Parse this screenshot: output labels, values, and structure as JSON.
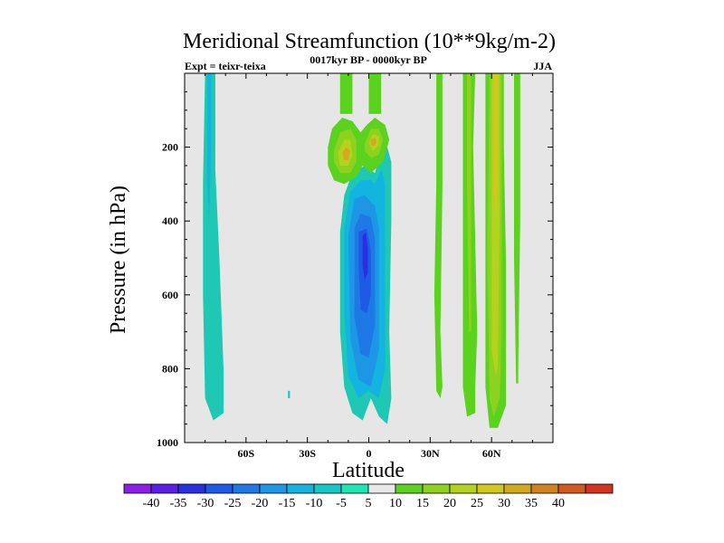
{
  "chart_data": {
    "type": "contour",
    "title": "Meridional Streamfunction (10**9kg/m-2)",
    "subtitle": "0017kyr BP - 0000kyr BP",
    "left_label": "Expt = teixr-teixa",
    "right_label": "JJA",
    "xlabel": "Latitude",
    "ylabel": "Pressure (in hPa)",
    "xlim": [
      -90,
      90
    ],
    "ylim": [
      1000,
      0
    ],
    "x_ticks": [
      {
        "value": -60,
        "label": "60S"
      },
      {
        "value": -30,
        "label": "30S"
      },
      {
        "value": 0,
        "label": "0"
      },
      {
        "value": 30,
        "label": "30N"
      },
      {
        "value": 60,
        "label": "60N"
      }
    ],
    "y_ticks": [
      {
        "value": 200,
        "label": "200"
      },
      {
        "value": 400,
        "label": "400"
      },
      {
        "value": 600,
        "label": "600"
      },
      {
        "value": 800,
        "label": "800"
      },
      {
        "value": 1000,
        "label": "1000"
      }
    ],
    "background_color": "#e6e6e6",
    "colorbar": {
      "levels": [
        -40,
        -35,
        -30,
        -25,
        -20,
        -15,
        -10,
        -5,
        5,
        10,
        15,
        20,
        25,
        30,
        35,
        40
      ],
      "level_labels": [
        "-40",
        "-35",
        "-30",
        "-25",
        "-20",
        "-15",
        "-10",
        "-5",
        "5",
        "10",
        "15",
        "20",
        "25",
        "30",
        "35",
        "40"
      ],
      "colors": [
        "#8c1ee6",
        "#5a1ee6",
        "#2a30e0",
        "#1e5ae6",
        "#1e78e6",
        "#1e96e6",
        "#14b4e0",
        "#14c8c8",
        "#1ee6b4",
        "#e8e8e8",
        "#5ad21e",
        "#8cd21e",
        "#b4d21e",
        "#d2c81e",
        "#d2aa1e",
        "#d2821e",
        "#d25a1e",
        "#d2321e"
      ]
    },
    "features": [
      {
        "name": "southern-negative-band",
        "level": -10,
        "color": "#1ec8b4",
        "outline": [
          [
            -80,
            0
          ],
          [
            -75,
            0
          ],
          [
            -75,
            260
          ],
          [
            -73,
            500
          ],
          [
            -71,
            800
          ],
          [
            -71,
            920
          ],
          [
            -76,
            940
          ],
          [
            -80,
            880
          ],
          [
            -81,
            600
          ],
          [
            -81,
            300
          ],
          [
            -80,
            0
          ]
        ]
      },
      {
        "name": "southern-negative-core",
        "level": -15,
        "color": "#14b4e0",
        "outline": [
          [
            -79,
            0
          ],
          [
            -77,
            0
          ],
          [
            -77,
            200
          ],
          [
            -78,
            400
          ],
          [
            -79,
            300
          ],
          [
            -79,
            0
          ]
        ]
      },
      {
        "name": "small-negative-dot",
        "level": -10,
        "color": "#1ec8b4",
        "outline": [
          [
            -39.5,
            860
          ],
          [
            -38.5,
            860
          ],
          [
            -38.5,
            880
          ],
          [
            -39.5,
            880
          ],
          [
            -39.5,
            860
          ]
        ]
      },
      {
        "name": "equatorial-negative-cell-outer",
        "level": -10,
        "color": "#1ec8b4",
        "outline": [
          [
            -14,
            430
          ],
          [
            -12,
            330
          ],
          [
            -8,
            270
          ],
          [
            -2,
            250
          ],
          [
            3,
            270
          ],
          [
            5,
            230
          ],
          [
            9,
            200
          ],
          [
            11,
            240
          ],
          [
            11,
            400
          ],
          [
            10,
            700
          ],
          [
            11,
            880
          ],
          [
            9,
            950
          ],
          [
            5,
            930
          ],
          [
            1,
            880
          ],
          [
            -3,
            940
          ],
          [
            -8,
            920
          ],
          [
            -12,
            850
          ],
          [
            -14,
            700
          ],
          [
            -14,
            430
          ]
        ]
      },
      {
        "name": "equatorial-negative-cell-15",
        "level": -15,
        "color": "#14b4e0",
        "outline": [
          [
            -12,
            420
          ],
          [
            -9,
            320
          ],
          [
            -4,
            290
          ],
          [
            1,
            290
          ],
          [
            3,
            300
          ],
          [
            6,
            260
          ],
          [
            8,
            300
          ],
          [
            8,
            500
          ],
          [
            8,
            800
          ],
          [
            5,
            880
          ],
          [
            0,
            860
          ],
          [
            -5,
            880
          ],
          [
            -10,
            820
          ],
          [
            -12,
            650
          ],
          [
            -12,
            420
          ]
        ]
      },
      {
        "name": "equatorial-negative-cell-20",
        "level": -20,
        "color": "#1e96e6",
        "outline": [
          [
            -10,
            440
          ],
          [
            -7,
            340
          ],
          [
            -2,
            330
          ],
          [
            3,
            360
          ],
          [
            5,
            420
          ],
          [
            5,
            750
          ],
          [
            1,
            850
          ],
          [
            -5,
            830
          ],
          [
            -9,
            720
          ],
          [
            -10,
            440
          ]
        ]
      },
      {
        "name": "equatorial-negative-cell-25",
        "level": -25,
        "color": "#1e78e6",
        "outline": [
          [
            -7,
            420
          ],
          [
            -4,
            380
          ],
          [
            1,
            390
          ],
          [
            3,
            450
          ],
          [
            3,
            680
          ],
          [
            0,
            770
          ],
          [
            -4,
            760
          ],
          [
            -7,
            660
          ],
          [
            -7,
            420
          ]
        ]
      },
      {
        "name": "equatorial-negative-cell-30",
        "level": -30,
        "color": "#1e5ae6",
        "outline": [
          [
            -5,
            430
          ],
          [
            -1,
            420
          ],
          [
            1,
            480
          ],
          [
            1,
            600
          ],
          [
            -1,
            650
          ],
          [
            -4,
            640
          ],
          [
            -5,
            520
          ],
          [
            -5,
            430
          ]
        ]
      },
      {
        "name": "equatorial-negative-cell-35",
        "level": -35,
        "color": "#2a30e0",
        "outline": [
          [
            -3,
            440
          ],
          [
            -1.5,
            430
          ],
          [
            -0.5,
            470
          ],
          [
            -0.5,
            540
          ],
          [
            -2,
            560
          ],
          [
            -3,
            520
          ],
          [
            -3,
            440
          ]
        ]
      },
      {
        "name": "upper-positive-left-column",
        "level": 5,
        "color": "#5ad21e",
        "outline": [
          [
            -14,
            0
          ],
          [
            -8,
            0
          ],
          [
            -8,
            110
          ],
          [
            -14,
            110
          ],
          [
            -14,
            0
          ]
        ]
      },
      {
        "name": "upper-positive-right-column",
        "level": 5,
        "color": "#5ad21e",
        "outline": [
          [
            0,
            0
          ],
          [
            6,
            0
          ],
          [
            6,
            110
          ],
          [
            0,
            110
          ],
          [
            0,
            0
          ]
        ]
      },
      {
        "name": "upper-positive-lobes",
        "level": 5,
        "color": "#5ad21e",
        "outline": [
          [
            -20,
            200
          ],
          [
            -18,
            150
          ],
          [
            -13,
            120
          ],
          [
            -8,
            130
          ],
          [
            -4,
            160
          ],
          [
            -1,
            140
          ],
          [
            3,
            120
          ],
          [
            8,
            140
          ],
          [
            10,
            180
          ],
          [
            7,
            240
          ],
          [
            1,
            270
          ],
          [
            -3,
            250
          ],
          [
            -6,
            280
          ],
          [
            -12,
            300
          ],
          [
            -17,
            290
          ],
          [
            -20,
            250
          ],
          [
            -20,
            200
          ]
        ]
      },
      {
        "name": "upper-positive-lobe-left-10",
        "level": 10,
        "color": "#8cd21e",
        "outline": [
          [
            -17,
            210
          ],
          [
            -14,
            160
          ],
          [
            -9,
            150
          ],
          [
            -6,
            180
          ],
          [
            -6,
            240
          ],
          [
            -9,
            270
          ],
          [
            -14,
            270
          ],
          [
            -17,
            240
          ],
          [
            -17,
            210
          ]
        ]
      },
      {
        "name": "upper-positive-lobe-right-10",
        "level": 10,
        "color": "#8cd21e",
        "outline": [
          [
            -2,
            190
          ],
          [
            1,
            150
          ],
          [
            5,
            150
          ],
          [
            7,
            180
          ],
          [
            5,
            220
          ],
          [
            1,
            230
          ],
          [
            -2,
            210
          ],
          [
            -2,
            190
          ]
        ]
      },
      {
        "name": "upper-positive-lobe-left-15",
        "level": 15,
        "color": "#b4d21e",
        "outline": [
          [
            -15,
            215
          ],
          [
            -12,
            180
          ],
          [
            -9,
            180
          ],
          [
            -8,
            220
          ],
          [
            -10,
            250
          ],
          [
            -14,
            250
          ],
          [
            -15,
            215
          ]
        ]
      },
      {
        "name": "upper-positive-lobe-right-15",
        "level": 15,
        "color": "#b4d21e",
        "outline": [
          [
            0,
            190
          ],
          [
            2,
            165
          ],
          [
            5,
            170
          ],
          [
            5,
            195
          ],
          [
            2,
            210
          ],
          [
            0,
            190
          ]
        ]
      },
      {
        "name": "upper-positive-lobe-left-20",
        "level": 20,
        "color": "#d2aa1e",
        "outline": [
          [
            -13,
            215
          ],
          [
            -11,
            200
          ],
          [
            -9,
            210
          ],
          [
            -10,
            235
          ],
          [
            -12,
            235
          ],
          [
            -13,
            215
          ]
        ]
      },
      {
        "name": "upper-positive-lobe-right-20",
        "level": 20,
        "color": "#d2aa1e",
        "outline": [
          [
            1,
            180
          ],
          [
            3,
            175
          ],
          [
            4,
            185
          ],
          [
            3,
            195
          ],
          [
            1,
            195
          ],
          [
            1,
            180
          ]
        ]
      },
      {
        "name": "positive-band-35n",
        "level": 5,
        "color": "#5ad21e",
        "outline": [
          [
            33,
            0
          ],
          [
            36,
            0
          ],
          [
            36,
            300
          ],
          [
            35,
            700
          ],
          [
            36,
            850
          ],
          [
            35,
            880
          ],
          [
            33,
            860
          ],
          [
            32,
            600
          ],
          [
            33,
            300
          ],
          [
            33,
            0
          ]
        ]
      },
      {
        "name": "positive-band-47n",
        "level": 5,
        "color": "#5ad21e",
        "outline": [
          [
            46,
            0
          ],
          [
            52,
            0
          ],
          [
            51,
            200
          ],
          [
            52,
            450
          ],
          [
            53,
            700
          ],
          [
            52,
            850
          ],
          [
            52,
            920
          ],
          [
            48,
            930
          ],
          [
            46,
            850
          ],
          [
            46,
            500
          ],
          [
            46,
            200
          ],
          [
            46,
            0
          ]
        ]
      },
      {
        "name": "positive-band-47n-10",
        "level": 10,
        "color": "#8cd21e",
        "outline": [
          [
            48,
            0
          ],
          [
            50,
            0
          ],
          [
            50,
            300
          ],
          [
            50,
            700
          ],
          [
            49,
            700
          ],
          [
            48,
            300
          ],
          [
            48,
            0
          ]
        ]
      },
      {
        "name": "positive-band-60n",
        "level": 5,
        "color": "#5ad21e",
        "outline": [
          [
            57,
            0
          ],
          [
            66,
            0
          ],
          [
            66,
            200
          ],
          [
            67,
            500
          ],
          [
            67,
            900
          ],
          [
            63,
            960
          ],
          [
            59,
            960
          ],
          [
            57,
            850
          ],
          [
            57,
            500
          ],
          [
            57,
            0
          ]
        ]
      },
      {
        "name": "positive-band-60n-10",
        "level": 10,
        "color": "#8cd21e",
        "outline": [
          [
            59,
            0
          ],
          [
            65,
            0
          ],
          [
            65,
            300
          ],
          [
            65,
            700
          ],
          [
            64,
            880
          ],
          [
            61,
            930
          ],
          [
            59,
            880
          ],
          [
            58,
            500
          ],
          [
            59,
            0
          ]
        ]
      },
      {
        "name": "positive-band-60n-15",
        "level": 15,
        "color": "#b4d21e",
        "outline": [
          [
            60,
            0
          ],
          [
            64,
            0
          ],
          [
            64,
            400
          ],
          [
            63,
            800
          ],
          [
            62,
            820
          ],
          [
            60,
            750
          ],
          [
            60,
            300
          ],
          [
            60,
            0
          ]
        ]
      },
      {
        "name": "positive-band-60n-20",
        "level": 20,
        "color": "#d2c81e",
        "outline": [
          [
            61,
            0
          ],
          [
            63,
            0
          ],
          [
            63,
            300
          ],
          [
            62,
            400
          ],
          [
            61,
            300
          ],
          [
            61,
            0
          ]
        ]
      },
      {
        "name": "positive-band-73n",
        "level": 5,
        "color": "#5ad21e",
        "outline": [
          [
            71,
            0
          ],
          [
            74,
            0
          ],
          [
            74,
            400
          ],
          [
            73,
            800
          ],
          [
            73,
            840
          ],
          [
            72,
            840
          ],
          [
            71,
            500
          ],
          [
            71,
            0
          ]
        ]
      }
    ]
  }
}
